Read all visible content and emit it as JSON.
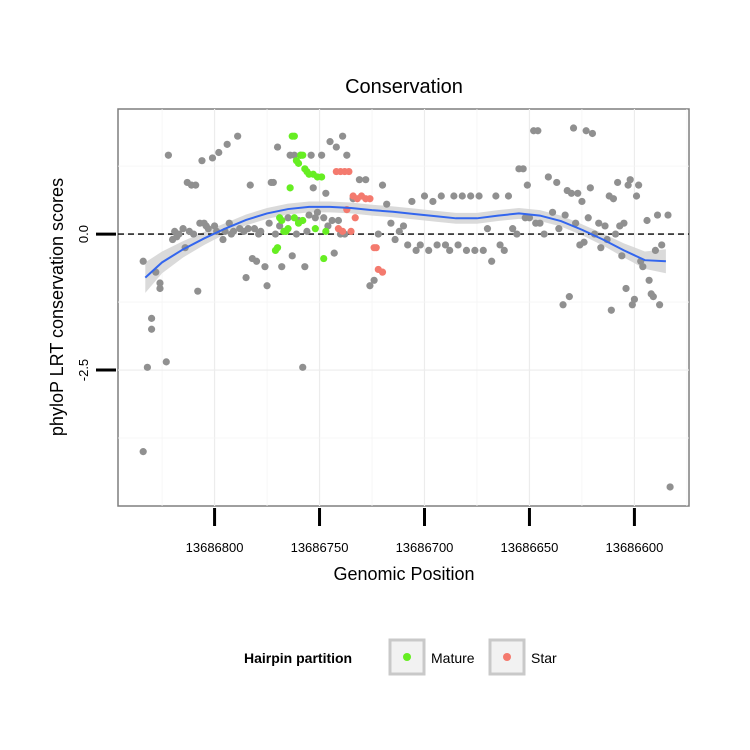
{
  "chart_data": {
    "type": "scatter",
    "title": "Conservation",
    "xlabel": "Genomic Position",
    "ylabel": "phyloP LRT conservation scores",
    "x_reversed": true,
    "xlim": [
      13686574,
      13686846
    ],
    "ylim": [
      -5.0,
      2.3
    ],
    "x_ticks": [
      13686800,
      13686750,
      13686700,
      13686650,
      13686600
    ],
    "y_ticks": [
      0.0,
      -2.5
    ],
    "y_tick_labels": [
      "0.0",
      "-2.5"
    ],
    "reference_line": {
      "y": 0,
      "style": "dashed"
    },
    "legend": {
      "title": "Hairpin partition",
      "position": "bottom",
      "entries": [
        {
          "label": "Mature",
          "color": "#66ee22"
        },
        {
          "label": "Star",
          "color": "#f47a6e"
        }
      ]
    },
    "colors": {
      "other": "#909090",
      "mature": "#66ee22",
      "star": "#f47a6e",
      "smooth": "#3366ee",
      "ribbon": "#d6d6d6"
    },
    "smooth": {
      "x": [
        13686833,
        13686825,
        13686815,
        13686805,
        13686795,
        13686785,
        13686775,
        13686765,
        13686755,
        13686745,
        13686735,
        13686725,
        13686715,
        13686705,
        13686695,
        13686685,
        13686675,
        13686665,
        13686655,
        13686645,
        13686635,
        13686625,
        13686615,
        13686605,
        13686595,
        13686585
      ],
      "y": [
        -0.8,
        -0.52,
        -0.28,
        -0.08,
        0.1,
        0.26,
        0.38,
        0.46,
        0.5,
        0.5,
        0.48,
        0.44,
        0.41,
        0.37,
        0.33,
        0.29,
        0.29,
        0.34,
        0.38,
        0.34,
        0.24,
        0.08,
        -0.1,
        -0.3,
        -0.48,
        -0.5
      ],
      "se": [
        0.28,
        0.2,
        0.15,
        0.12,
        0.1,
        0.1,
        0.1,
        0.1,
        0.1,
        0.1,
        0.1,
        0.1,
        0.1,
        0.1,
        0.1,
        0.1,
        0.1,
        0.1,
        0.1,
        0.1,
        0.1,
        0.1,
        0.11,
        0.13,
        0.16,
        0.22
      ]
    },
    "series": [
      {
        "name": "Other",
        "color": "#909090",
        "points": [
          [
            13686834,
            -0.5
          ],
          [
            13686834,
            -4.0
          ],
          [
            13686832,
            -2.45
          ],
          [
            13686830,
            -1.75
          ],
          [
            13686830,
            -1.55
          ],
          [
            13686828,
            -0.7
          ],
          [
            13686826,
            -0.9
          ],
          [
            13686826,
            -1.0
          ],
          [
            13686823,
            -2.35
          ],
          [
            13686822,
            1.45
          ],
          [
            13686820,
            -0.1
          ],
          [
            13686819,
            0.05
          ],
          [
            13686818,
            -0.05
          ],
          [
            13686817,
            0.0
          ],
          [
            13686815,
            0.1
          ],
          [
            13686814,
            -0.25
          ],
          [
            13686813,
            0.95
          ],
          [
            13686812,
            0.05
          ],
          [
            13686811,
            0.9
          ],
          [
            13686810,
            0.0
          ],
          [
            13686809,
            0.9
          ],
          [
            13686808,
            -1.05
          ],
          [
            13686807,
            0.2
          ],
          [
            13686806,
            1.35
          ],
          [
            13686805,
            0.2
          ],
          [
            13686804,
            0.15
          ],
          [
            13686803,
            0.1
          ],
          [
            13686801,
            1.4
          ],
          [
            13686800,
            0.15
          ],
          [
            13686799,
            0.05
          ],
          [
            13686798,
            1.5
          ],
          [
            13686796,
            -0.1
          ],
          [
            13686795,
            0.05
          ],
          [
            13686794,
            1.65
          ],
          [
            13686793,
            0.2
          ],
          [
            13686792,
            0.0
          ],
          [
            13686791,
            0.05
          ],
          [
            13686789,
            1.8
          ],
          [
            13686788,
            0.1
          ],
          [
            13686786,
            0.05
          ],
          [
            13686785,
            -0.8
          ],
          [
            13686784,
            0.1
          ],
          [
            13686783,
            0.9
          ],
          [
            13686782,
            -0.45
          ],
          [
            13686781,
            0.1
          ],
          [
            13686780,
            -0.5
          ],
          [
            13686779,
            0.0
          ],
          [
            13686778,
            0.05
          ],
          [
            13686776,
            -0.6
          ],
          [
            13686775,
            -0.95
          ],
          [
            13686774,
            0.2
          ],
          [
            13686773,
            0.95
          ],
          [
            13686772,
            0.95
          ],
          [
            13686771,
            0.0
          ],
          [
            13686770,
            1.6
          ],
          [
            13686769,
            0.15
          ],
          [
            13686768,
            -0.6
          ],
          [
            13686766,
            0.05
          ],
          [
            13686765,
            0.3
          ],
          [
            13686764,
            1.45
          ],
          [
            13686763,
            -0.4
          ],
          [
            13686762,
            1.45
          ],
          [
            13686761,
            0.0
          ],
          [
            13686760,
            0.25
          ],
          [
            13686759,
            1.45
          ],
          [
            13686758,
            -2.45
          ],
          [
            13686757,
            -0.6
          ],
          [
            13686756,
            0.05
          ],
          [
            13686755,
            0.35
          ],
          [
            13686754,
            1.45
          ],
          [
            13686753,
            0.85
          ],
          [
            13686752,
            0.3
          ],
          [
            13686751,
            0.4
          ],
          [
            13686749,
            1.45
          ],
          [
            13686748,
            0.3
          ],
          [
            13686747,
            0.75
          ],
          [
            13686746,
            0.15
          ],
          [
            13686745,
            1.7
          ],
          [
            13686744,
            0.25
          ],
          [
            13686743,
            -0.35
          ],
          [
            13686742,
            1.6
          ],
          [
            13686741,
            0.25
          ],
          [
            13686740,
            0.0
          ],
          [
            13686739,
            1.8
          ],
          [
            13686738,
            0.0
          ],
          [
            13686737,
            1.45
          ],
          [
            13686734,
            0.65
          ],
          [
            13686731,
            1.0
          ],
          [
            13686728,
            1.0
          ],
          [
            13686726,
            -0.95
          ],
          [
            13686724,
            -0.85
          ],
          [
            13686722,
            0.0
          ],
          [
            13686720,
            0.9
          ],
          [
            13686718,
            0.55
          ],
          [
            13686716,
            0.2
          ],
          [
            13686714,
            -0.1
          ],
          [
            13686712,
            0.05
          ],
          [
            13686710,
            0.15
          ],
          [
            13686708,
            -0.2
          ],
          [
            13686706,
            0.6
          ],
          [
            13686704,
            -0.3
          ],
          [
            13686702,
            -0.2
          ],
          [
            13686700,
            0.7
          ],
          [
            13686698,
            -0.3
          ],
          [
            13686696,
            0.6
          ],
          [
            13686694,
            -0.2
          ],
          [
            13686692,
            0.7
          ],
          [
            13686690,
            -0.2
          ],
          [
            13686688,
            -0.3
          ],
          [
            13686686,
            0.7
          ],
          [
            13686684,
            -0.2
          ],
          [
            13686682,
            0.7
          ],
          [
            13686680,
            -0.3
          ],
          [
            13686678,
            0.7
          ],
          [
            13686676,
            -0.3
          ],
          [
            13686674,
            0.7
          ],
          [
            13686672,
            -0.3
          ],
          [
            13686670,
            0.1
          ],
          [
            13686668,
            -0.5
          ],
          [
            13686666,
            0.7
          ],
          [
            13686664,
            -0.2
          ],
          [
            13686662,
            -0.3
          ],
          [
            13686660,
            0.7
          ],
          [
            13686658,
            0.1
          ],
          [
            13686656,
            0.0
          ],
          [
            13686655,
            1.2
          ],
          [
            13686653,
            1.2
          ],
          [
            13686652,
            0.3
          ],
          [
            13686651,
            0.9
          ],
          [
            13686650,
            0.3
          ],
          [
            13686648,
            1.9
          ],
          [
            13686647,
            0.2
          ],
          [
            13686646,
            1.9
          ],
          [
            13686645,
            0.2
          ],
          [
            13686643,
            0.0
          ],
          [
            13686641,
            1.05
          ],
          [
            13686639,
            0.4
          ],
          [
            13686637,
            0.95
          ],
          [
            13686636,
            0.1
          ],
          [
            13686634,
            -1.3
          ],
          [
            13686633,
            0.35
          ],
          [
            13686632,
            0.8
          ],
          [
            13686631,
            -1.15
          ],
          [
            13686630,
            0.75
          ],
          [
            13686629,
            1.95
          ],
          [
            13686628,
            0.2
          ],
          [
            13686627,
            0.75
          ],
          [
            13686626,
            -0.2
          ],
          [
            13686625,
            0.6
          ],
          [
            13686624,
            -0.15
          ],
          [
            13686623,
            1.9
          ],
          [
            13686622,
            0.3
          ],
          [
            13686621,
            0.85
          ],
          [
            13686620,
            1.85
          ],
          [
            13686619,
            0.0
          ],
          [
            13686617,
            0.2
          ],
          [
            13686616,
            -0.25
          ],
          [
            13686614,
            0.15
          ],
          [
            13686613,
            -0.1
          ],
          [
            13686612,
            0.7
          ],
          [
            13686611,
            -1.4
          ],
          [
            13686610,
            0.65
          ],
          [
            13686609,
            0.0
          ],
          [
            13686608,
            0.95
          ],
          [
            13686607,
            0.15
          ],
          [
            13686606,
            -0.4
          ],
          [
            13686605,
            0.2
          ],
          [
            13686604,
            -1.0
          ],
          [
            13686603,
            0.9
          ],
          [
            13686602,
            1.0
          ],
          [
            13686601,
            -1.3
          ],
          [
            13686600,
            -1.2
          ],
          [
            13686599,
            0.7
          ],
          [
            13686598,
            0.9
          ],
          [
            13686597,
            -0.5
          ],
          [
            13686596,
            -0.6
          ],
          [
            13686594,
            0.25
          ],
          [
            13686593,
            -0.85
          ],
          [
            13686592,
            -1.1
          ],
          [
            13686591,
            -1.15
          ],
          [
            13686590,
            -0.3
          ],
          [
            13686589,
            0.35
          ],
          [
            13686588,
            -1.3
          ],
          [
            13686587,
            -0.2
          ],
          [
            13686584,
            0.35
          ],
          [
            13686583,
            -4.65
          ]
        ]
      },
      {
        "name": "Mature",
        "color": "#66ee22",
        "points": [
          [
            13686763,
            1.8
          ],
          [
            13686762,
            1.8
          ],
          [
            13686761,
            1.35
          ],
          [
            13686760,
            1.3
          ],
          [
            13686759,
            1.45
          ],
          [
            13686758,
            1.45
          ],
          [
            13686757,
            1.2
          ],
          [
            13686756,
            1.15
          ],
          [
            13686755,
            1.1
          ],
          [
            13686753,
            1.1
          ],
          [
            13686751,
            1.05
          ],
          [
            13686749,
            1.05
          ],
          [
            13686764,
            0.85
          ],
          [
            13686765,
            0.1
          ],
          [
            13686766,
            0.05
          ],
          [
            13686767,
            0.05
          ],
          [
            13686768,
            0.25
          ],
          [
            13686769,
            0.3
          ],
          [
            13686770,
            -0.25
          ],
          [
            13686771,
            -0.3
          ],
          [
            13686762,
            0.3
          ],
          [
            13686760,
            0.2
          ],
          [
            13686758,
            0.25
          ],
          [
            13686752,
            0.1
          ],
          [
            13686748,
            -0.45
          ],
          [
            13686747,
            0.05
          ]
        ]
      },
      {
        "name": "Star",
        "color": "#f47a6e",
        "points": [
          [
            13686742,
            1.15
          ],
          [
            13686740,
            1.15
          ],
          [
            13686738,
            1.15
          ],
          [
            13686736,
            1.15
          ],
          [
            13686734,
            0.7
          ],
          [
            13686732,
            0.65
          ],
          [
            13686730,
            0.7
          ],
          [
            13686728,
            0.65
          ],
          [
            13686726,
            0.65
          ],
          [
            13686724,
            -0.25
          ],
          [
            13686722,
            -0.65
          ],
          [
            13686720,
            -0.7
          ],
          [
            13686741,
            0.1
          ],
          [
            13686739,
            0.05
          ],
          [
            13686735,
            0.05
          ],
          [
            13686737,
            0.45
          ],
          [
            13686733,
            0.3
          ],
          [
            13686723,
            -0.25
          ]
        ]
      }
    ]
  }
}
